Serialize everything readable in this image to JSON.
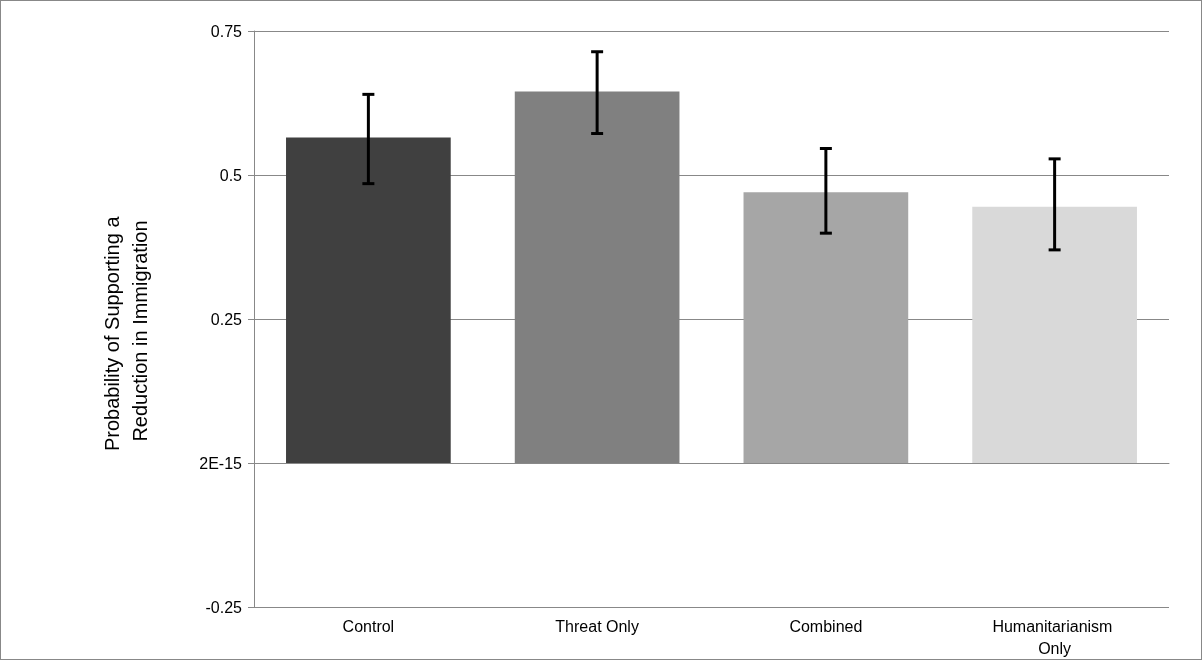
{
  "chart_data": {
    "type": "bar",
    "ylabel": "Probability of Supporting a Reduction in Immigration",
    "categories": [
      "Control",
      "Threat Only",
      "Combined",
      "Humanitarianism Only"
    ],
    "values": [
      0.565,
      0.645,
      0.47,
      0.445
    ],
    "colors": [
      "#404040",
      "#808080",
      "#a6a6a6",
      "#d9d9d9"
    ],
    "errors": [
      [
        0.485,
        0.64
      ],
      [
        0.572,
        0.714
      ],
      [
        0.399,
        0.546
      ],
      [
        0.37,
        0.528
      ]
    ],
    "ylim": [
      -0.25,
      0.75
    ],
    "yticks": [
      -0.25,
      {
        "value": 0,
        "label": "2E-15"
      },
      0.25,
      0.5,
      0.75
    ],
    "grid": "y"
  }
}
